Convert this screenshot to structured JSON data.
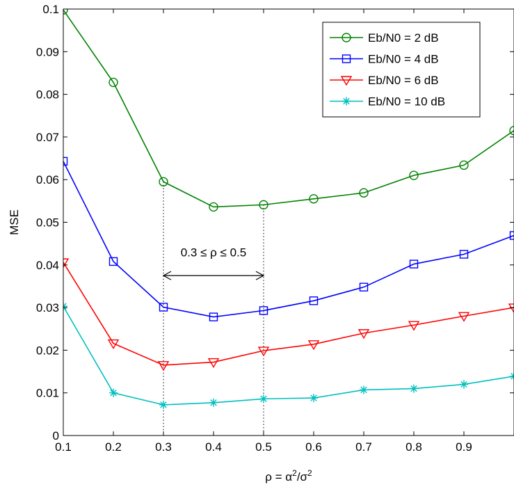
{
  "chart_data": {
    "type": "line",
    "xlabel": "ρ = α²/σ²",
    "ylabel": "MSE",
    "xlim": [
      0.1,
      1.0
    ],
    "ylim": [
      0,
      0.1
    ],
    "x": [
      0.1,
      0.2,
      0.3,
      0.4,
      0.5,
      0.6,
      0.7,
      0.8,
      0.9,
      1.0
    ],
    "x_ticks": [
      "0.1",
      "0.2",
      "0.3",
      "0.4",
      "0.5",
      "0.6",
      "0.7",
      "0.8",
      "0.9"
    ],
    "y_ticks": [
      "0",
      "0.01",
      "0.02",
      "0.03",
      "0.04",
      "0.05",
      "0.06",
      "0.07",
      "0.08",
      "0.09",
      "0.1"
    ],
    "grid": false,
    "legend_position": "top-right",
    "series": [
      {
        "name": "Eb/N0 = 2 dB",
        "color": "#008000",
        "marker": "circle",
        "values": [
          0.0998,
          0.0828,
          0.0595,
          0.0536,
          0.0541,
          0.0555,
          0.0569,
          0.061,
          0.0634,
          0.0715
        ]
      },
      {
        "name": "Eb/N0 = 4 dB",
        "color": "#0000ff",
        "marker": "square",
        "values": [
          0.0643,
          0.0408,
          0.0301,
          0.0278,
          0.0293,
          0.0316,
          0.0348,
          0.0402,
          0.0425,
          0.0469
        ]
      },
      {
        "name": "Eb/N0 = 6 dB",
        "color": "#ff0000",
        "marker": "triangle-down",
        "values": [
          0.0406,
          0.0216,
          0.0165,
          0.0172,
          0.0199,
          0.0214,
          0.024,
          0.0259,
          0.028,
          0.03
        ]
      },
      {
        "name": "Eb/N0 = 10 dB",
        "color": "#00bfbf",
        "marker": "star",
        "values": [
          0.0303,
          0.01,
          0.0072,
          0.0077,
          0.0086,
          0.0088,
          0.0107,
          0.011,
          0.012,
          0.0139
        ]
      }
    ],
    "annotation": {
      "text": "0.3 ≤ ρ ≤ 0.5",
      "arrow_from_x": 0.3,
      "arrow_to_x": 0.5,
      "arrow_y": 0.0375,
      "label_y": 0.043,
      "guide_lines": [
        {
          "x": 0.3,
          "y_top": 0.0595
        },
        {
          "x": 0.5,
          "y_top": 0.0541
        }
      ]
    }
  }
}
